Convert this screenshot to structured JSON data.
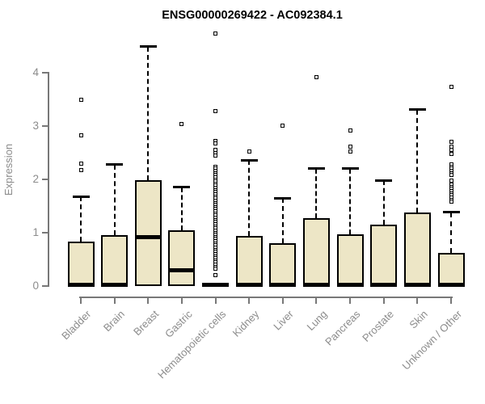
{
  "chart_data": {
    "type": "boxplot",
    "title": "ENSG00000269422 - AC092384.1",
    "ylabel": "Expression",
    "xlabel": "",
    "ylim": [
      0,
      4.8
    ],
    "yticks": [
      0,
      1,
      2,
      3,
      4
    ],
    "grid": false,
    "legend": "none",
    "box_fill_color": "#ede6c6",
    "box_stroke_color": "#000000",
    "axis_color": "#787878",
    "label_color": "#8c8c8c",
    "title_color": "#000000",
    "categories": [
      {
        "label": "Bladder",
        "whisker_high": 1.68,
        "q3": 0.83,
        "median": 0.03,
        "q1": 0,
        "whisker_low": 0,
        "outliers": [
          3.5,
          2.83,
          2.29,
          2.18
        ]
      },
      {
        "label": "Brain",
        "whisker_high": 2.28,
        "q3": 0.95,
        "median": 0.03,
        "q1": 0,
        "whisker_low": 0,
        "outliers": []
      },
      {
        "label": "Breast",
        "whisker_high": 4.49,
        "q3": 1.98,
        "median": 0.92,
        "q1": 0,
        "whisker_low": 0,
        "outliers": []
      },
      {
        "label": "Gastric",
        "whisker_high": 1.85,
        "q3": 1.05,
        "median": 0.3,
        "q1": 0,
        "whisker_low": 0,
        "outliers": [
          3.04
        ]
      },
      {
        "label": "Hematopoietic cells",
        "whisker_high": 0.08,
        "q3": 0.05,
        "median": 0.02,
        "q1": 0,
        "whisker_low": 0,
        "outliers": [
          4.73,
          3.28,
          2.72,
          2.67,
          2.55,
          2.5,
          2.45,
          2.24,
          2.2,
          2.16,
          2.12,
          2.08,
          2.04,
          2.0,
          1.96,
          1.92,
          1.88,
          1.84,
          1.8,
          1.76,
          1.72,
          1.68,
          1.64,
          1.6,
          1.56,
          1.52,
          1.48,
          1.44,
          1.4,
          1.36,
          1.32,
          1.28,
          1.24,
          1.2,
          1.16,
          1.12,
          1.08,
          1.04,
          1.0,
          0.96,
          0.92,
          0.88,
          0.84,
          0.8,
          0.76,
          0.72,
          0.68,
          0.64,
          0.6,
          0.56,
          0.52,
          0.48,
          0.44,
          0.4,
          0.36,
          0.32,
          0.21
        ]
      },
      {
        "label": "Kidney",
        "whisker_high": 2.36,
        "q3": 0.94,
        "median": 0.03,
        "q1": 0,
        "whisker_low": 0,
        "outliers": [
          2.53
        ]
      },
      {
        "label": "Liver",
        "whisker_high": 1.65,
        "q3": 0.8,
        "median": 0.03,
        "q1": 0,
        "whisker_low": 0,
        "outliers": [
          3.01
        ]
      },
      {
        "label": "Lung",
        "whisker_high": 2.2,
        "q3": 1.27,
        "median": 0.03,
        "q1": 0,
        "whisker_low": 0,
        "outliers": [
          3.92
        ]
      },
      {
        "label": "Pancreas",
        "whisker_high": 2.2,
        "q3": 0.97,
        "median": 0.03,
        "q1": 0,
        "whisker_low": 0,
        "outliers": [
          2.92,
          2.61,
          2.53
        ]
      },
      {
        "label": "Prostate",
        "whisker_high": 1.98,
        "q3": 1.15,
        "median": 0.03,
        "q1": 0,
        "whisker_low": 0,
        "outliers": []
      },
      {
        "label": "Skin",
        "whisker_high": 3.31,
        "q3": 1.38,
        "median": 0.03,
        "q1": 0,
        "whisker_low": 0,
        "outliers": []
      },
      {
        "label": "Unknown / Other",
        "whisker_high": 1.38,
        "q3": 0.62,
        "median": 0.03,
        "q1": 0,
        "whisker_low": 0,
        "outliers": [
          3.73,
          2.7,
          2.62,
          2.55,
          2.48,
          2.28,
          2.24,
          2.2,
          2.16,
          2.12,
          2.08,
          1.98,
          1.9,
          1.86,
          1.82,
          1.78,
          1.74,
          1.7,
          1.66,
          1.62,
          1.58
        ]
      }
    ]
  }
}
